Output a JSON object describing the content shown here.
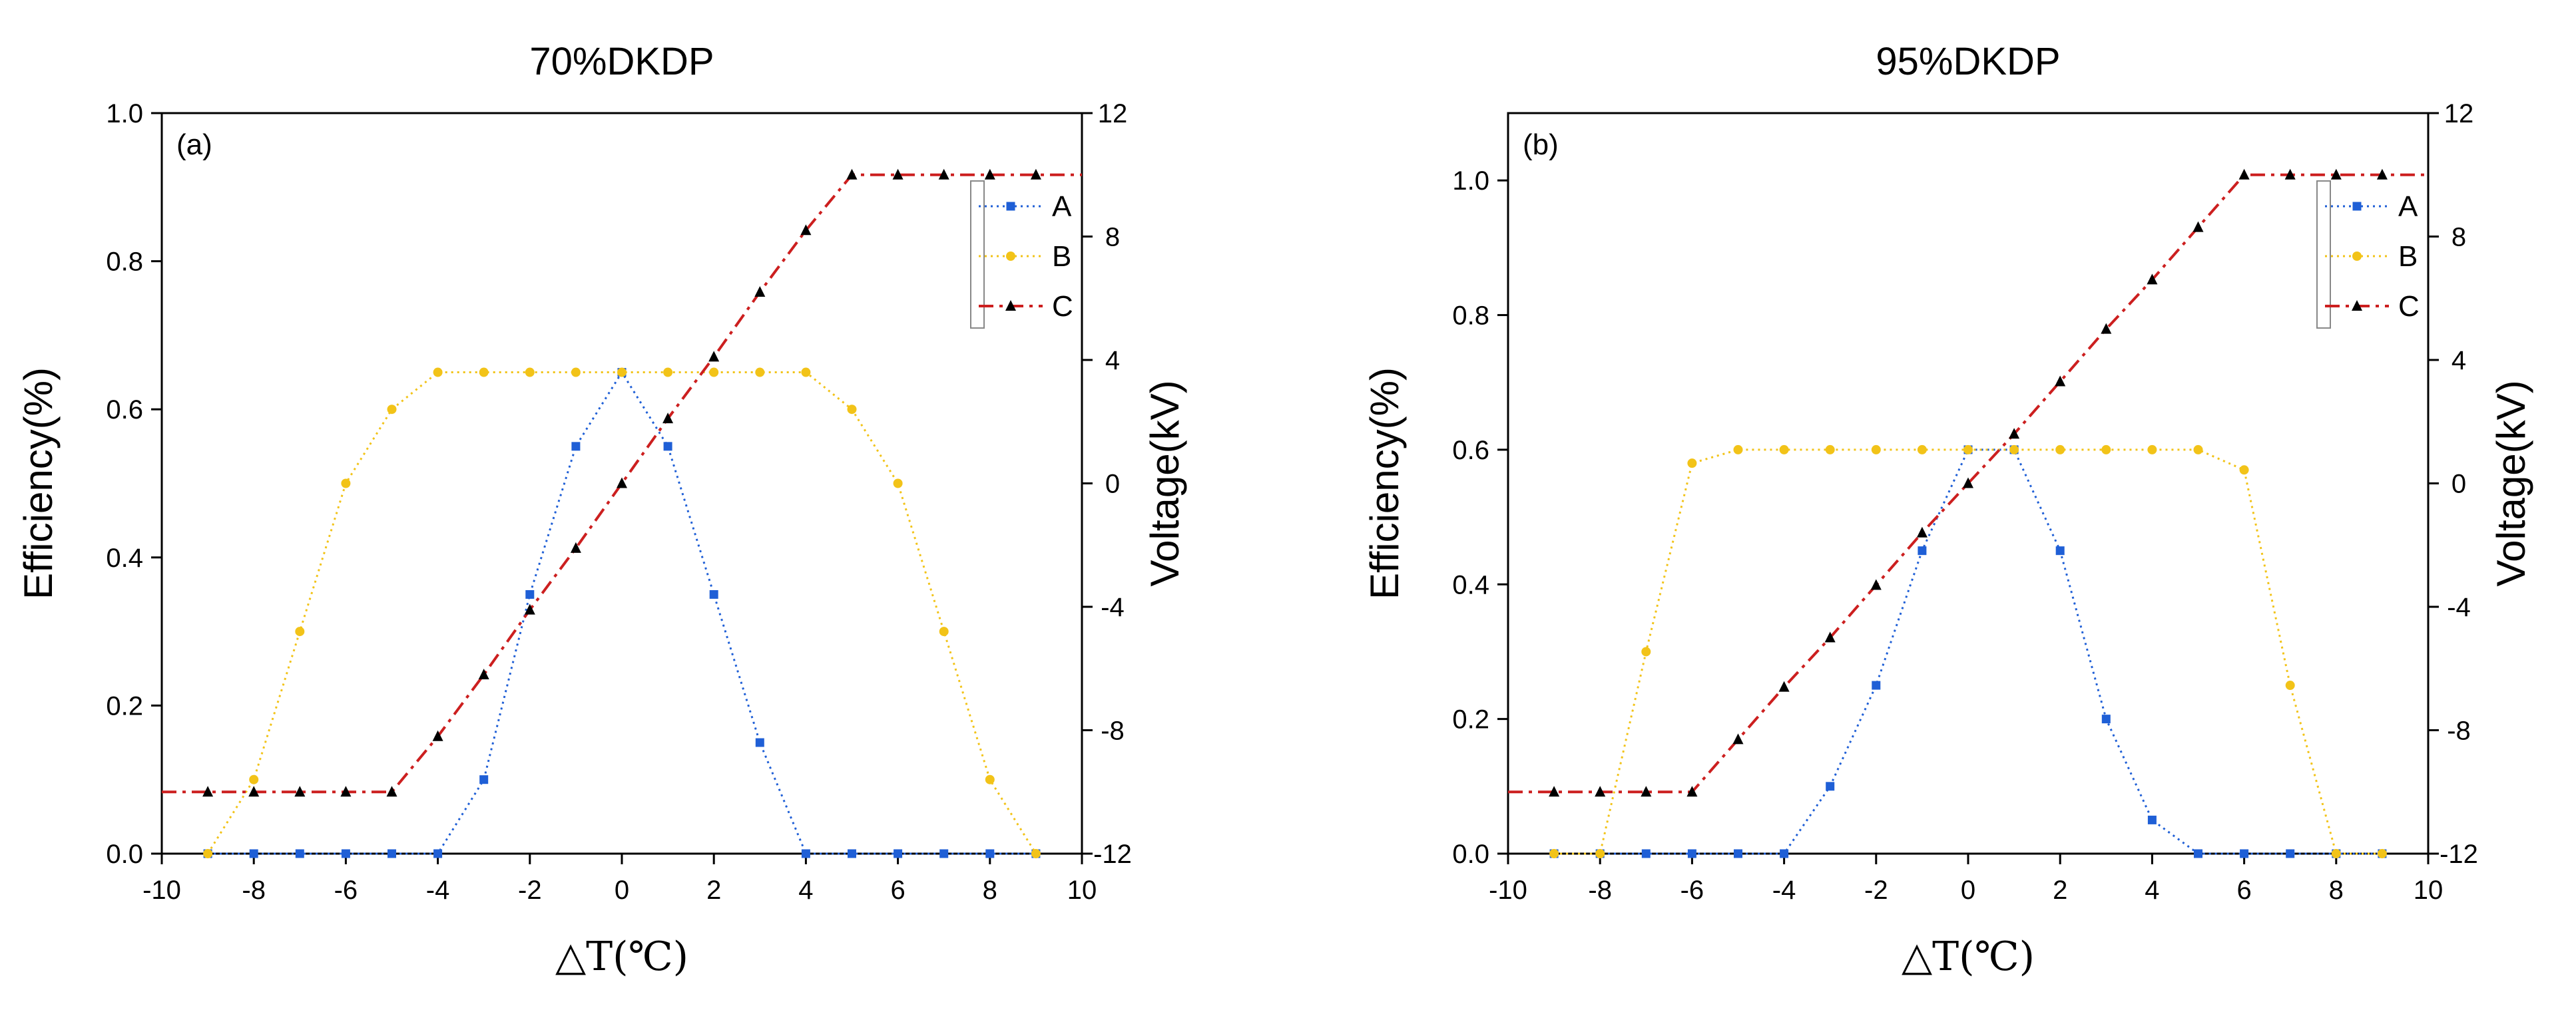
{
  "chart_data": [
    {
      "type": "line",
      "title": "70%DKDP",
      "panel_label": "(a)",
      "xlabel": "△T(℃)",
      "ylabel": "Efficiency(%)",
      "y2label": "Voltage(kV)",
      "xlim": [
        -10,
        10
      ],
      "ylim": [
        0,
        1.0
      ],
      "y2lim": [
        -12,
        12
      ],
      "xticks": [
        -10,
        -8,
        -6,
        -4,
        -2,
        0,
        2,
        4,
        6,
        8,
        10
      ],
      "yticks": [
        0.0,
        0.2,
        0.4,
        0.6,
        0.8,
        1.0
      ],
      "ytick_labels": [
        "0.0",
        "0.2",
        "0.4",
        "0.6",
        "0.8",
        "1.0"
      ],
      "y2ticks": [
        -12,
        -8,
        -4,
        0,
        4,
        8,
        12
      ],
      "legend_position": "top-right",
      "series": [
        {
          "name": "A",
          "axis": "left",
          "color": "#1f5fd6",
          "marker": "square",
          "line": "dotted",
          "x": [
            -9,
            -8,
            -7,
            -6,
            -5,
            -4,
            -3,
            -2,
            -1,
            0,
            1,
            2,
            3,
            4,
            5,
            6,
            7,
            8,
            9
          ],
          "y": [
            0,
            0,
            0,
            0,
            0,
            0,
            0.1,
            0.35,
            0.55,
            0.65,
            0.55,
            0.35,
            0.15,
            0,
            0,
            0,
            0,
            0,
            0
          ]
        },
        {
          "name": "B",
          "axis": "left",
          "color": "#f2c318",
          "marker": "circle",
          "line": "dotted",
          "x": [
            -9,
            -8,
            -7,
            -6,
            -5,
            -4,
            -3,
            -2,
            -1,
            0,
            1,
            2,
            3,
            4,
            5,
            6,
            7,
            8,
            9
          ],
          "y": [
            0,
            0.1,
            0.3,
            0.5,
            0.6,
            0.65,
            0.65,
            0.65,
            0.65,
            0.65,
            0.65,
            0.65,
            0.65,
            0.65,
            0.6,
            0.5,
            0.3,
            0.1,
            0
          ]
        },
        {
          "name": "C",
          "axis": "right",
          "color": "#cc1f1f",
          "marker": "triangle",
          "line": "dashdot",
          "x": [
            -10,
            -9,
            -8,
            -7,
            -6,
            -5,
            -4,
            -3,
            -2,
            -1,
            0,
            1,
            2,
            3,
            4,
            5,
            6,
            7,
            8,
            9,
            10
          ],
          "y": [
            -10,
            -10,
            -10,
            -10,
            -10,
            -10,
            -8.2,
            -6.2,
            -4.1,
            -2.1,
            0,
            2.1,
            4.1,
            6.2,
            8.2,
            10,
            10,
            10,
            10,
            10,
            10
          ],
          "markers_at": [
            -9,
            -8,
            -7,
            -6,
            -5,
            -4,
            -3,
            -2,
            -1,
            0,
            1,
            2,
            3,
            4,
            5,
            6,
            7,
            8,
            9
          ]
        }
      ]
    },
    {
      "type": "line",
      "title": "95%DKDP",
      "panel_label": "(b)",
      "xlabel": "△T(℃)",
      "ylabel": "Efficiency(%)",
      "y2label": "Voltage(kV)",
      "xlim": [
        -10,
        10
      ],
      "ylim": [
        0,
        1.1
      ],
      "y2lim": [
        -12,
        12
      ],
      "xticks": [
        -10,
        -8,
        -6,
        -4,
        -2,
        0,
        2,
        4,
        6,
        8,
        10
      ],
      "yticks": [
        0.0,
        0.2,
        0.4,
        0.6,
        0.8,
        1.0
      ],
      "ytick_labels": [
        "0.0",
        "0.2",
        "0.4",
        "0.6",
        "0.8",
        "1.0"
      ],
      "y2ticks": [
        -12,
        -8,
        -4,
        0,
        4,
        8,
        12
      ],
      "legend_position": "top-right",
      "series": [
        {
          "name": "A",
          "axis": "left",
          "color": "#1f5fd6",
          "marker": "square",
          "line": "dotted",
          "x": [
            -9,
            -8,
            -7,
            -6,
            -5,
            -4,
            -3,
            -2,
            -1,
            0,
            1,
            2,
            3,
            4,
            5,
            6,
            7,
            8,
            9
          ],
          "y": [
            0,
            0,
            0,
            0,
            0,
            0,
            0.1,
            0.25,
            0.45,
            0.6,
            0.6,
            0.45,
            0.2,
            0.05,
            0,
            0,
            0,
            0,
            0
          ]
        },
        {
          "name": "B",
          "axis": "left",
          "color": "#f2c318",
          "marker": "circle",
          "line": "dotted",
          "x": [
            -9,
            -8,
            -7,
            -6,
            -5,
            -4,
            -3,
            -2,
            -1,
            0,
            1,
            2,
            3,
            4,
            5,
            6,
            7,
            8,
            9
          ],
          "y": [
            0,
            0,
            0.3,
            0.58,
            0.6,
            0.6,
            0.6,
            0.6,
            0.6,
            0.6,
            0.6,
            0.6,
            0.6,
            0.6,
            0.6,
            0.57,
            0.25,
            0,
            0
          ]
        },
        {
          "name": "C",
          "axis": "right",
          "color": "#cc1f1f",
          "marker": "triangle",
          "line": "dashdot",
          "x": [
            -10,
            -9,
            -8,
            -7,
            -6,
            -5,
            -4,
            -3,
            -2,
            -1,
            0,
            1,
            2,
            3,
            4,
            5,
            6,
            7,
            8,
            9,
            10
          ],
          "y": [
            -10,
            -10,
            -10,
            -10,
            -10,
            -8.3,
            -6.6,
            -5.0,
            -3.3,
            -1.6,
            0,
            1.6,
            3.3,
            5.0,
            6.6,
            8.3,
            10,
            10,
            10,
            10,
            10
          ],
          "markers_at": [
            -9,
            -8,
            -7,
            -6,
            -5,
            -4,
            -3,
            -2,
            -1,
            0,
            1,
            2,
            3,
            4,
            5,
            6,
            7,
            8,
            9
          ]
        }
      ]
    }
  ]
}
